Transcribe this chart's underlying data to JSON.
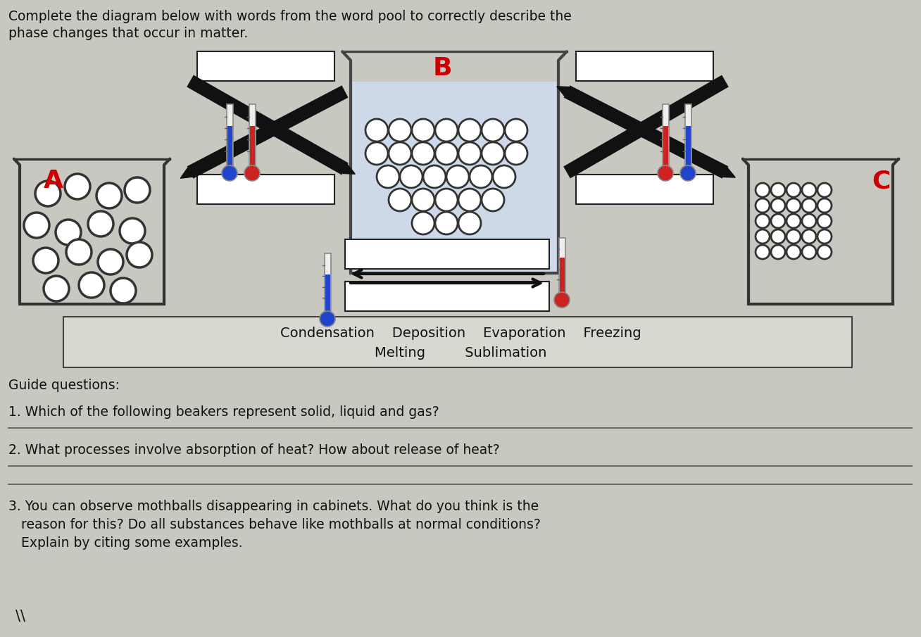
{
  "title_line1": "Complete the diagram below with words from the word pool to correctly describe the",
  "title_line2": "phase changes that occur in matter.",
  "word_pool_line1": "Condensation    Deposition    Evaporation    Freezing",
  "word_pool_line2": "Melting         Sublimation",
  "guide_questions_title": "Guide questions:",
  "question1": "1. Which of the following beakers represent solid, liquid and gas?",
  "question2": "2. What processes involve absorption of heat? How about release of heat?",
  "question3_line1": "3. You can observe mothballs disappearing in cabinets. What do you think is the",
  "question3_line2": "   reason for this? Do all substances behave like mothballs at normal conditions?",
  "question3_line3": "   Explain by citing some examples.",
  "label_A": "A",
  "label_B": "B",
  "label_C": "C",
  "bg_color": "#c8c8c0",
  "text_color": "#111111"
}
